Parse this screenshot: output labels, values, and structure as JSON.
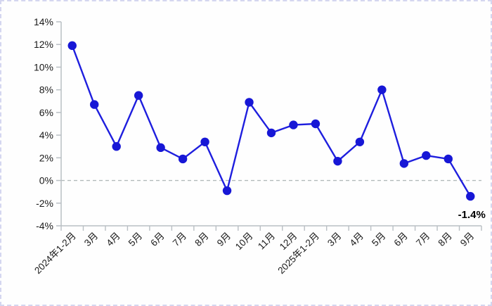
{
  "chart_data": {
    "type": "line",
    "title": "",
    "categories": [
      "2024年1-2月",
      "3月",
      "4月",
      "5月",
      "6月",
      "7月",
      "8月",
      "9月",
      "10月",
      "11月",
      "12月",
      "2025年1-2月",
      "3月",
      "4月",
      "5月",
      "6月",
      "7月",
      "8月",
      "9月"
    ],
    "values": [
      11.9,
      6.7,
      3.0,
      7.5,
      2.9,
      1.9,
      3.4,
      -0.9,
      6.9,
      4.2,
      4.9,
      5.0,
      1.7,
      3.4,
      8.0,
      1.5,
      2.2,
      1.9,
      -1.4
    ],
    "ylim": [
      -4,
      14
    ],
    "ytick_step": 2,
    "y_tick_labels": [
      "14%",
      "12%",
      "10%",
      "8%",
      "6%",
      "4%",
      "2%",
      "0%",
      "-2%",
      "-4%"
    ],
    "annotation": {
      "text": "-1.4%",
      "index": 18
    },
    "zero_line": {
      "value": 0,
      "style": "dashed"
    },
    "grid": false,
    "legend": false,
    "xlabel": "",
    "ylabel": "",
    "colors": {
      "line": "#1e1ede",
      "marker": "#1717d6",
      "zero_line": "#b2baba",
      "axis": "#b9bfc4",
      "tick_label": "#1a1a1a",
      "annotation": "#000000",
      "frame_border": "#d4d6f0",
      "background": "#fefefe"
    }
  }
}
